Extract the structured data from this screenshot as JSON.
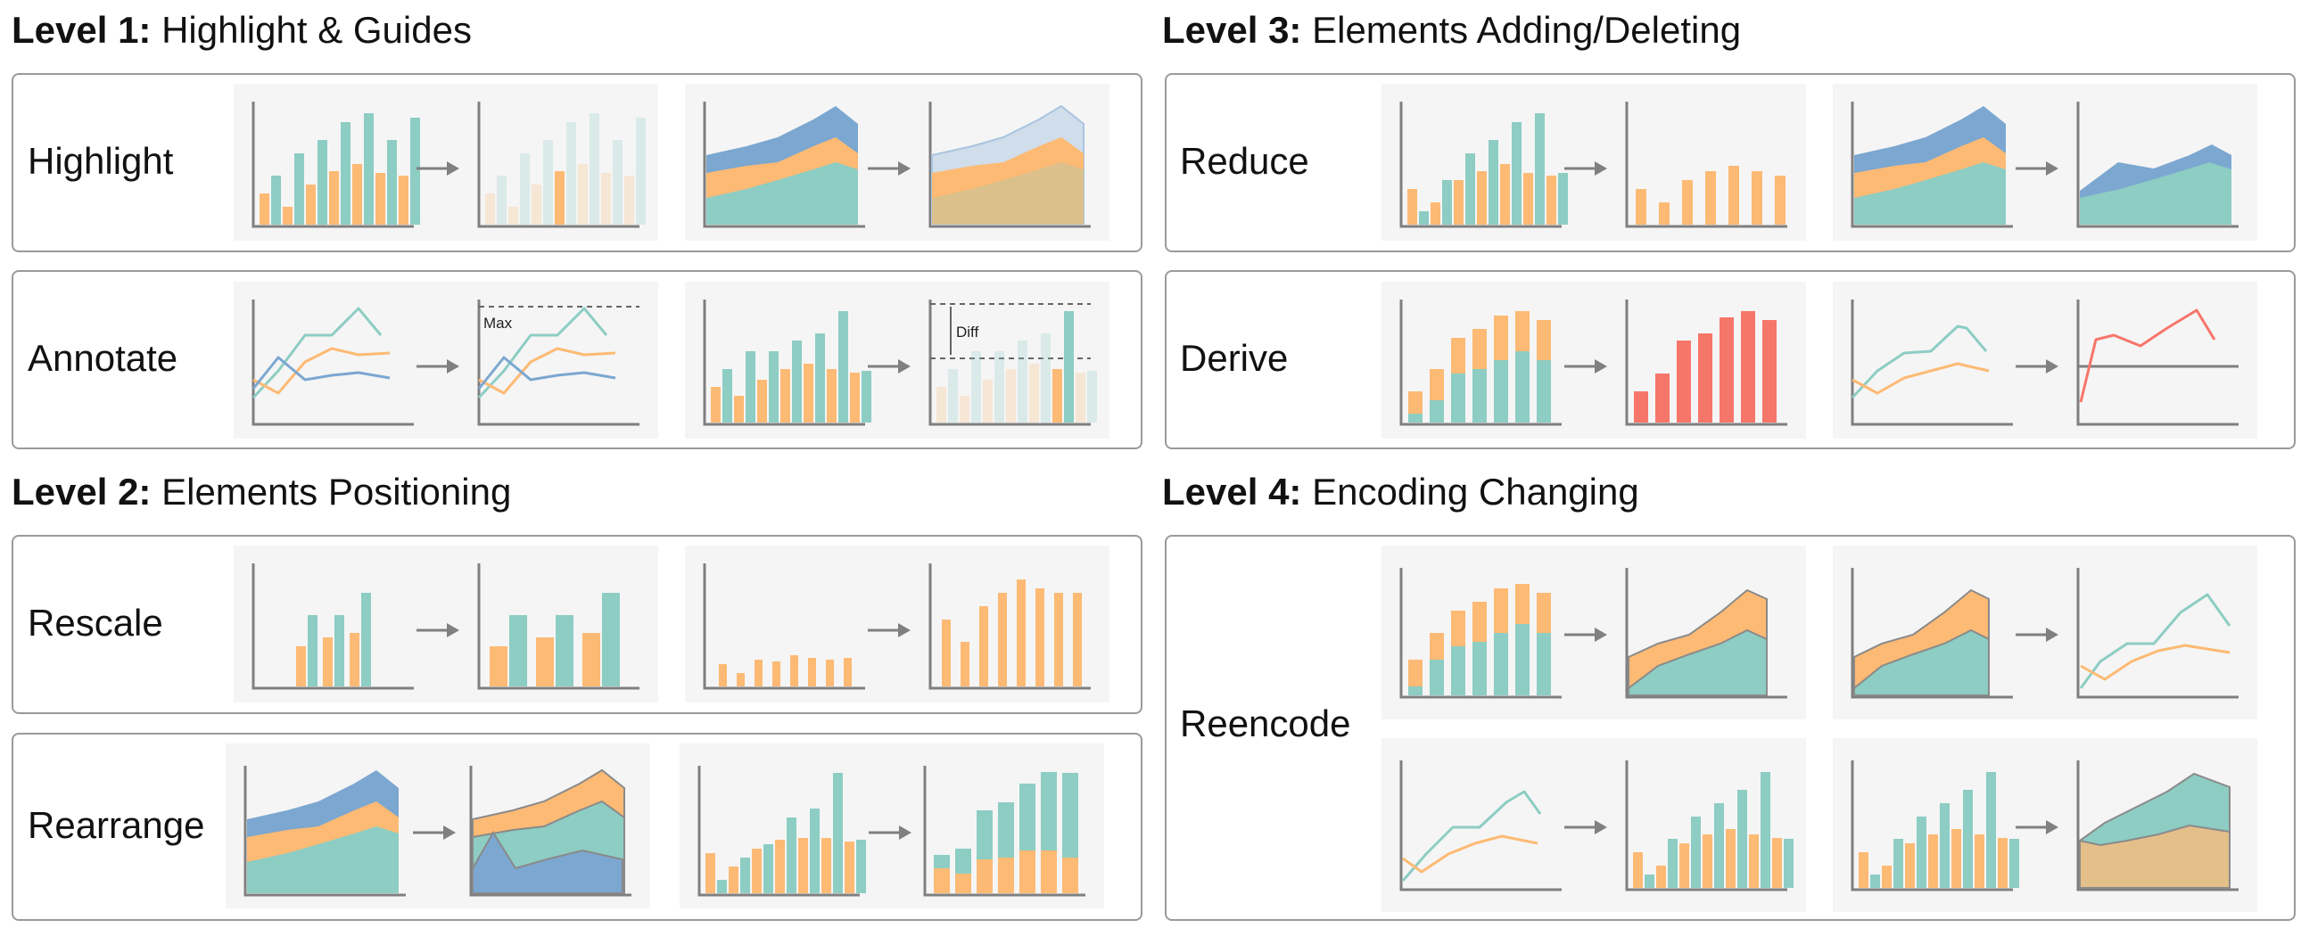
{
  "colors": {
    "teal": "#8dcdc3",
    "orange": "#fdba74",
    "blue": "#7ba7d0",
    "red": "#f7766a",
    "axis": "#7f7f7f",
    "arrow": "#808080",
    "panel": "#f5f5f5",
    "border": "#9a9a9a"
  },
  "levels": [
    {
      "strong": "Level 1:",
      "text": "Highlight & Guides"
    },
    {
      "strong": "Level 2:",
      "text": "Elements Positioning"
    },
    {
      "strong": "Level 3:",
      "text": "Elements Adding/Deleting"
    },
    {
      "strong": "Level 4:",
      "text": "Encoding Changing"
    }
  ],
  "rows": {
    "highlight": "Highlight",
    "annotate": "Annotate",
    "rescale": "Rescale",
    "rearrange": "Rearrange",
    "reduce": "Reduce",
    "derive": "Derive",
    "reencode": "Reencode"
  },
  "annotations": {
    "max": "Max",
    "diff": "Diff"
  }
}
